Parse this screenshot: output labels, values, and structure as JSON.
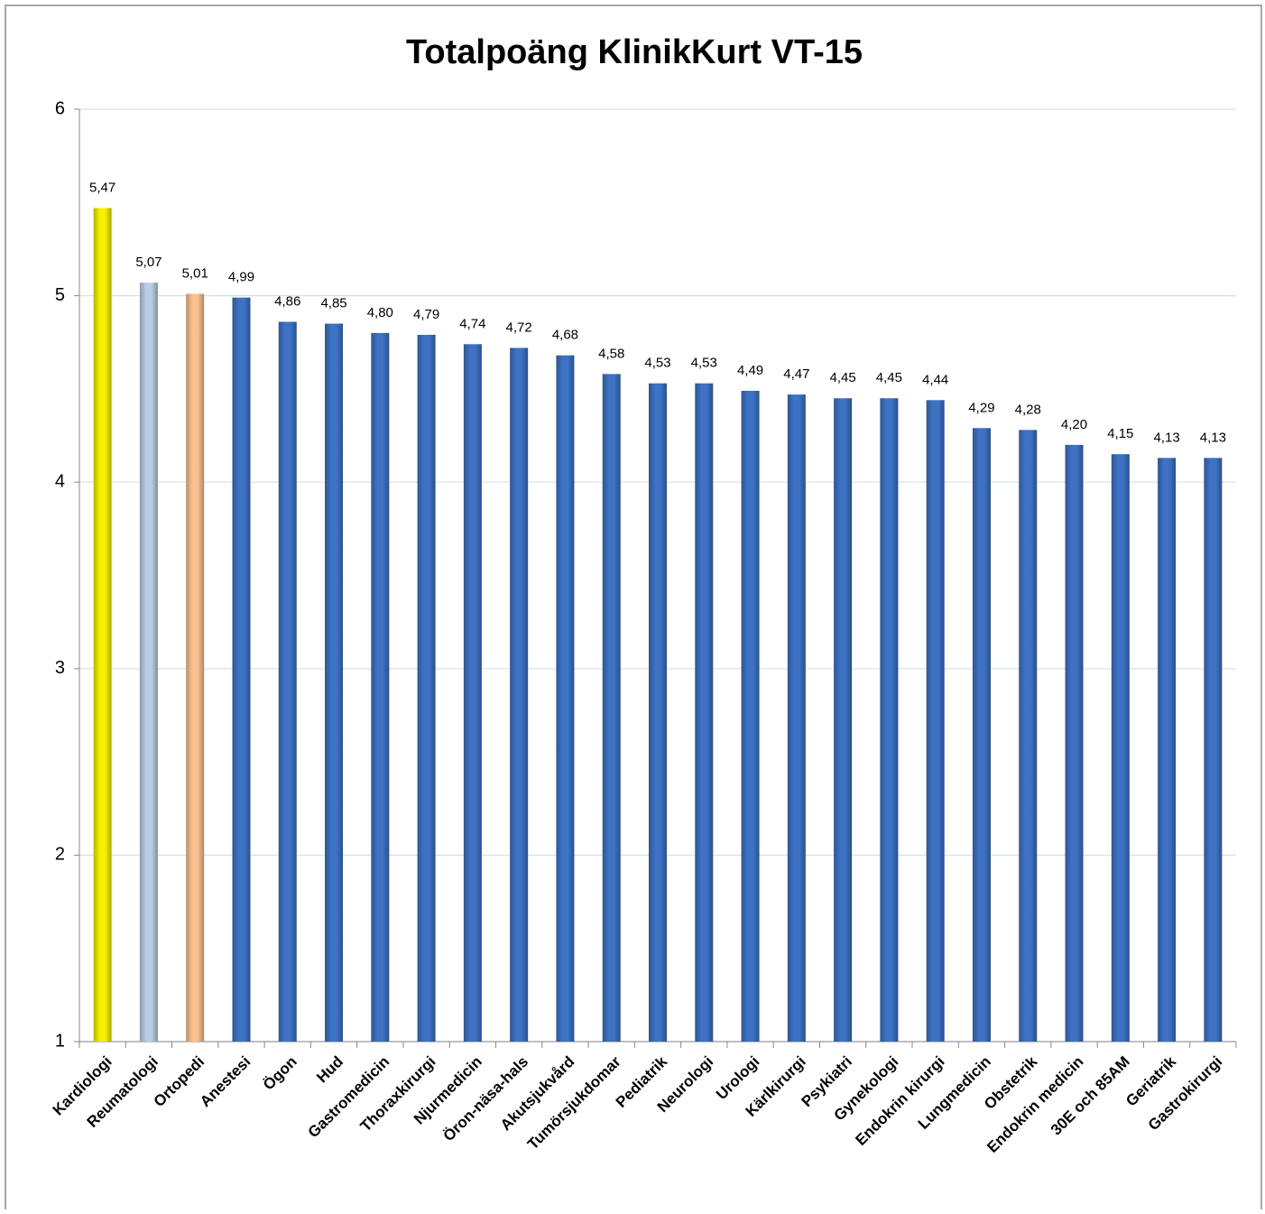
{
  "chart_data": {
    "type": "bar",
    "title": "Totalpoäng KlinikKurt VT-15",
    "categories": [
      "Kardiologi",
      "Reumatologi",
      "Ortopedi",
      "Anestesi",
      "Ögon",
      "Hud",
      "Gastromedicin",
      "Thoraxkirurgi",
      "Njurmedicin",
      "Öron-näsa-hals",
      "Akutsjukvård",
      "Tumörsjukdomar",
      "Pediatrik",
      "Neurologi",
      "Urologi",
      "Kärlkirurgi",
      "Psykiatri",
      "Gynekologi",
      "Endokrin kirurgi",
      "Lungmedicin",
      "Obstetrik",
      "Endokrin medicin",
      "30E och 85AM",
      "Geriatrik",
      "Gastrokirurgi"
    ],
    "values": [
      5.47,
      5.07,
      5.01,
      4.99,
      4.86,
      4.85,
      4.8,
      4.79,
      4.74,
      4.72,
      4.68,
      4.58,
      4.53,
      4.53,
      4.49,
      4.47,
      4.45,
      4.45,
      4.44,
      4.29,
      4.28,
      4.2,
      4.15,
      4.13,
      4.13
    ],
    "value_labels": [
      "5,47",
      "5,07",
      "5,01",
      "4,99",
      "4,86",
      "4,85",
      "4,80",
      "4,79",
      "4,74",
      "4,72",
      "4,68",
      "4,58",
      "4,53",
      "4,53",
      "4,49",
      "4,47",
      "4,45",
      "4,45",
      "4,44",
      "4,29",
      "4,28",
      "4,20",
      "4,15",
      "4,13",
      "4,13"
    ],
    "colors": [
      "#f5f000",
      "#b9cde5",
      "#fac090",
      "#3d72c4",
      "#3d72c4",
      "#3d72c4",
      "#3d72c4",
      "#3d72c4",
      "#3d72c4",
      "#3d72c4",
      "#3d72c4",
      "#3d72c4",
      "#3d72c4",
      "#3d72c4",
      "#3d72c4",
      "#3d72c4",
      "#3d72c4",
      "#3d72c4",
      "#3d72c4",
      "#3d72c4",
      "#3d72c4",
      "#3d72c4",
      "#3d72c4",
      "#3d72c4",
      "#3d72c4"
    ],
    "ylim": [
      1,
      6
    ],
    "yticks": [
      1,
      2,
      3,
      4,
      5,
      6
    ],
    "grid": true
  }
}
